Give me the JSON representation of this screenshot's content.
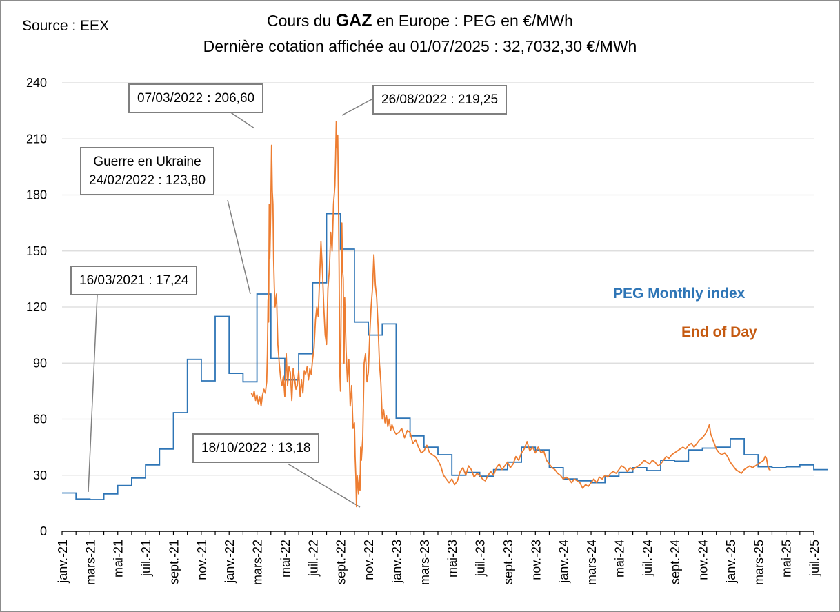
{
  "chart_data": {
    "type": "line",
    "title_line1_prefix": "Cours du ",
    "title_line1_bold": "GAZ",
    "title_line1_suffix": " en Europe : PEG en €/MWh",
    "title_line2": "Dernière cotation affichée au 01/07/2025 : 32,7032,30 €/MWh",
    "source": "Source : EEX",
    "ylim": [
      0,
      240
    ],
    "yticks": [
      "0",
      "30",
      "60",
      "90",
      "120",
      "150",
      "180",
      "210",
      "240"
    ],
    "x_month_range": [
      "2021-01",
      "2025-07"
    ],
    "xticks": [
      "janv.-21",
      "mars-21",
      "mai-21",
      "juil.-21",
      "sept.-21",
      "nov.-21",
      "janv.-22",
      "mars-22",
      "mai-22",
      "juil.-22",
      "sept.-22",
      "nov.-22",
      "janv.-23",
      "mars-23",
      "mai-23",
      "juil.-23",
      "sept.-23",
      "nov.-23",
      "janv.-24",
      "mars-24",
      "mai-24",
      "juil.-24",
      "sept.-24",
      "nov.-24",
      "janv.-25",
      "mars-25",
      "mai-25",
      "juil.-25"
    ],
    "series": [
      {
        "name": "PEG Monthly index",
        "color": "#2e75b6",
        "style": "step",
        "x_months": [
          0,
          1,
          2,
          3,
          4,
          5,
          6,
          7,
          8,
          9,
          10,
          11,
          12,
          13,
          14,
          15,
          16,
          17,
          18,
          19,
          20,
          21,
          22,
          23,
          24,
          25,
          26,
          27,
          28,
          29,
          30,
          31,
          32,
          33,
          34,
          35,
          36,
          37,
          38,
          39,
          40,
          41,
          42,
          43,
          44,
          45,
          46,
          47,
          48,
          49,
          50,
          51,
          52,
          53,
          54
        ],
        "values": [
          20.5,
          17.24,
          17,
          20,
          24.5,
          28.5,
          35.5,
          44,
          63.5,
          92,
          80.5,
          115,
          84.5,
          80,
          127,
          92.5,
          81,
          95,
          133,
          170,
          151,
          112,
          105,
          111,
          60.5,
          51,
          45,
          41,
          30,
          31.5,
          29.5,
          33,
          37,
          45,
          43.5,
          34,
          28,
          27,
          26,
          29.5,
          31.5,
          34,
          32.5,
          38,
          37.5,
          43.5,
          44.5,
          45,
          49.5,
          41,
          34.5,
          34,
          34.5,
          35.5,
          33
        ]
      },
      {
        "name": "End of Day",
        "color": "#ed7d31",
        "style": "line",
        "points": [
          [
            13.6,
            74
          ],
          [
            13.7,
            72
          ],
          [
            13.8,
            75
          ],
          [
            13.9,
            70
          ],
          [
            14.0,
            73
          ],
          [
            14.1,
            68
          ],
          [
            14.2,
            72
          ],
          [
            14.3,
            67
          ],
          [
            14.4,
            73
          ],
          [
            14.5,
            76
          ],
          [
            14.6,
            74
          ],
          [
            14.7,
            80
          ],
          [
            14.75,
            95
          ],
          [
            14.8,
            123.8
          ],
          [
            14.84,
            112
          ],
          [
            14.88,
            175
          ],
          [
            14.92,
            146
          ],
          [
            14.96,
            160
          ],
          [
            15.0,
            178
          ],
          [
            15.05,
            206.6
          ],
          [
            15.1,
            182
          ],
          [
            15.15,
            175
          ],
          [
            15.2,
            145
          ],
          [
            15.25,
            130
          ],
          [
            15.3,
            120
          ],
          [
            15.4,
            127
          ],
          [
            15.5,
            100
          ],
          [
            15.6,
            90
          ],
          [
            15.7,
            82
          ],
          [
            15.8,
            78
          ],
          [
            15.9,
            83
          ],
          [
            16.0,
            72
          ],
          [
            16.1,
            95
          ],
          [
            16.2,
            78
          ],
          [
            16.3,
            88
          ],
          [
            16.4,
            85
          ],
          [
            16.5,
            70
          ],
          [
            16.6,
            87
          ],
          [
            16.7,
            82
          ],
          [
            16.8,
            76
          ],
          [
            16.9,
            78
          ],
          [
            17.0,
            86
          ],
          [
            17.1,
            72
          ],
          [
            17.2,
            81
          ],
          [
            17.3,
            74
          ],
          [
            17.4,
            86
          ],
          [
            17.5,
            84
          ],
          [
            17.6,
            88
          ],
          [
            17.7,
            81
          ],
          [
            17.8,
            87
          ],
          [
            17.9,
            84
          ],
          [
            18.0,
            92
          ],
          [
            18.1,
            98
          ],
          [
            18.2,
            113
          ],
          [
            18.3,
            120
          ],
          [
            18.4,
            115
          ],
          [
            18.5,
            135
          ],
          [
            18.6,
            155
          ],
          [
            18.7,
            140
          ],
          [
            18.8,
            120
          ],
          [
            18.9,
            105
          ],
          [
            19.0,
            100
          ],
          [
            19.1,
            130
          ],
          [
            19.2,
            140
          ],
          [
            19.3,
            160
          ],
          [
            19.4,
            150
          ],
          [
            19.5,
            175
          ],
          [
            19.6,
            185
          ],
          [
            19.65,
            200
          ],
          [
            19.7,
            219.25
          ],
          [
            19.75,
            205
          ],
          [
            19.8,
            212
          ],
          [
            19.85,
            180
          ],
          [
            19.9,
            140
          ],
          [
            19.95,
            85
          ],
          [
            20.0,
            75
          ],
          [
            20.05,
            120
          ],
          [
            20.1,
            165
          ],
          [
            20.15,
            140
          ],
          [
            20.2,
            135
          ],
          [
            20.25,
            90
          ],
          [
            20.3,
            125
          ],
          [
            20.4,
            97
          ],
          [
            20.5,
            80
          ],
          [
            20.6,
            92
          ],
          [
            20.7,
            67
          ],
          [
            20.8,
            78
          ],
          [
            20.9,
            55
          ],
          [
            21.0,
            58
          ],
          [
            21.05,
            40
          ],
          [
            21.1,
            30
          ],
          [
            21.15,
            13.18
          ],
          [
            21.2,
            30
          ],
          [
            21.25,
            25
          ],
          [
            21.3,
            20
          ],
          [
            21.35,
            30
          ],
          [
            21.4,
            22
          ],
          [
            21.45,
            45
          ],
          [
            21.5,
            38
          ],
          [
            21.6,
            50
          ],
          [
            21.7,
            90
          ],
          [
            21.8,
            95
          ],
          [
            21.9,
            80
          ],
          [
            22.0,
            85
          ],
          [
            22.1,
            105
          ],
          [
            22.2,
            120
          ],
          [
            22.3,
            130
          ],
          [
            22.4,
            148
          ],
          [
            22.45,
            140
          ],
          [
            22.5,
            132
          ],
          [
            22.6,
            125
          ],
          [
            22.7,
            110
          ],
          [
            22.8,
            90
          ],
          [
            22.9,
            80
          ],
          [
            23.0,
            60
          ],
          [
            23.1,
            65
          ],
          [
            23.2,
            58
          ],
          [
            23.3,
            62
          ],
          [
            23.4,
            56
          ],
          [
            23.5,
            60
          ],
          [
            23.6,
            54
          ],
          [
            23.7,
            57
          ],
          [
            23.8,
            55
          ],
          [
            23.9,
            53
          ],
          [
            24.0,
            52
          ],
          [
            24.2,
            53
          ],
          [
            24.4,
            55
          ],
          [
            24.6,
            50
          ],
          [
            24.8,
            54
          ],
          [
            25.0,
            53
          ],
          [
            25.2,
            47
          ],
          [
            25.4,
            49
          ],
          [
            25.6,
            45
          ],
          [
            25.8,
            42
          ],
          [
            26.0,
            43
          ],
          [
            26.2,
            46
          ],
          [
            26.4,
            42
          ],
          [
            26.6,
            41
          ],
          [
            26.8,
            40
          ],
          [
            27.0,
            38
          ],
          [
            27.2,
            35
          ],
          [
            27.4,
            30
          ],
          [
            27.6,
            28
          ],
          [
            27.8,
            26
          ],
          [
            28.0,
            28
          ],
          [
            28.2,
            25
          ],
          [
            28.4,
            27
          ],
          [
            28.6,
            32
          ],
          [
            28.8,
            34
          ],
          [
            29.0,
            30
          ],
          [
            29.2,
            35
          ],
          [
            29.4,
            33
          ],
          [
            29.6,
            29
          ],
          [
            29.8,
            31
          ],
          [
            30.0,
            30
          ],
          [
            30.2,
            28
          ],
          [
            30.4,
            27
          ],
          [
            30.6,
            30
          ],
          [
            30.8,
            32
          ],
          [
            31.0,
            30
          ],
          [
            31.2,
            34
          ],
          [
            31.4,
            36
          ],
          [
            31.6,
            33
          ],
          [
            31.8,
            35
          ],
          [
            32.0,
            37
          ],
          [
            32.2,
            34
          ],
          [
            32.4,
            36
          ],
          [
            32.6,
            40
          ],
          [
            32.8,
            38
          ],
          [
            33.0,
            42
          ],
          [
            33.2,
            44
          ],
          [
            33.4,
            48
          ],
          [
            33.6,
            43
          ],
          [
            33.8,
            45
          ],
          [
            34.0,
            42
          ],
          [
            34.2,
            45
          ],
          [
            34.4,
            42
          ],
          [
            34.6,
            43
          ],
          [
            34.8,
            38
          ],
          [
            35.0,
            36
          ],
          [
            35.2,
            34
          ],
          [
            35.4,
            33
          ],
          [
            35.6,
            31
          ],
          [
            35.8,
            30
          ],
          [
            36.0,
            28
          ],
          [
            36.2,
            29
          ],
          [
            36.4,
            28
          ],
          [
            36.6,
            26
          ],
          [
            36.8,
            28
          ],
          [
            37.0,
            27
          ],
          [
            37.2,
            26
          ],
          [
            37.4,
            23
          ],
          [
            37.6,
            25
          ],
          [
            37.8,
            24
          ],
          [
            38.0,
            26
          ],
          [
            38.2,
            28
          ],
          [
            38.4,
            26
          ],
          [
            38.6,
            29
          ],
          [
            38.8,
            28
          ],
          [
            39.0,
            30
          ],
          [
            39.2,
            29
          ],
          [
            39.4,
            31
          ],
          [
            39.6,
            32
          ],
          [
            39.8,
            31
          ],
          [
            40.0,
            33
          ],
          [
            40.2,
            35
          ],
          [
            40.4,
            34
          ],
          [
            40.6,
            32
          ],
          [
            40.8,
            34
          ],
          [
            41.0,
            33
          ],
          [
            41.2,
            34
          ],
          [
            41.4,
            35
          ],
          [
            41.6,
            36
          ],
          [
            41.8,
            38
          ],
          [
            42.0,
            37
          ],
          [
            42.2,
            36
          ],
          [
            42.4,
            38
          ],
          [
            42.6,
            37
          ],
          [
            42.8,
            35
          ],
          [
            43.0,
            36
          ],
          [
            43.2,
            38
          ],
          [
            43.4,
            40
          ],
          [
            43.6,
            39
          ],
          [
            43.8,
            41
          ],
          [
            44.0,
            42
          ],
          [
            44.2,
            43
          ],
          [
            44.4,
            44
          ],
          [
            44.6,
            45
          ],
          [
            44.8,
            44
          ],
          [
            45.0,
            46
          ],
          [
            45.2,
            47
          ],
          [
            45.4,
            45
          ],
          [
            45.6,
            47
          ],
          [
            45.8,
            49
          ],
          [
            46.0,
            50
          ],
          [
            46.2,
            52
          ],
          [
            46.4,
            55
          ],
          [
            46.5,
            57
          ],
          [
            46.6,
            52
          ],
          [
            46.8,
            48
          ],
          [
            47.0,
            44
          ],
          [
            47.2,
            42
          ],
          [
            47.4,
            41
          ],
          [
            47.6,
            42
          ],
          [
            47.8,
            40
          ],
          [
            48.0,
            37
          ],
          [
            48.2,
            35
          ],
          [
            48.4,
            33
          ],
          [
            48.6,
            32
          ],
          [
            48.8,
            31
          ],
          [
            49.0,
            33
          ],
          [
            49.2,
            34
          ],
          [
            49.4,
            35
          ],
          [
            49.6,
            34
          ],
          [
            49.8,
            35
          ],
          [
            50.0,
            36
          ],
          [
            50.2,
            37
          ],
          [
            50.4,
            38
          ],
          [
            50.5,
            40
          ],
          [
            50.6,
            39
          ],
          [
            50.7,
            35
          ],
          [
            50.8,
            33
          ],
          [
            50.9,
            32.7
          ]
        ]
      }
    ],
    "annotations": [
      {
        "text": "16/03/2021 : 17,24"
      },
      {
        "text_line1": "Guerre en Ukraine",
        "text_line2": "24/02/2022 : 123,80"
      },
      {
        "date": "07/03/2022",
        "value": "206,60"
      },
      {
        "text": "26/08/2022 : 219,25"
      },
      {
        "text": "18/10/2022 : 13,18"
      }
    ],
    "legend": {
      "monthly": "PEG Monthly index",
      "eod": "End of Day"
    }
  },
  "colors": {
    "monthly": "#2e75b6",
    "eod": "#ed7d31",
    "grid": "#d9d9d9",
    "axis": "#000000",
    "leader": "#7f7f7f"
  }
}
